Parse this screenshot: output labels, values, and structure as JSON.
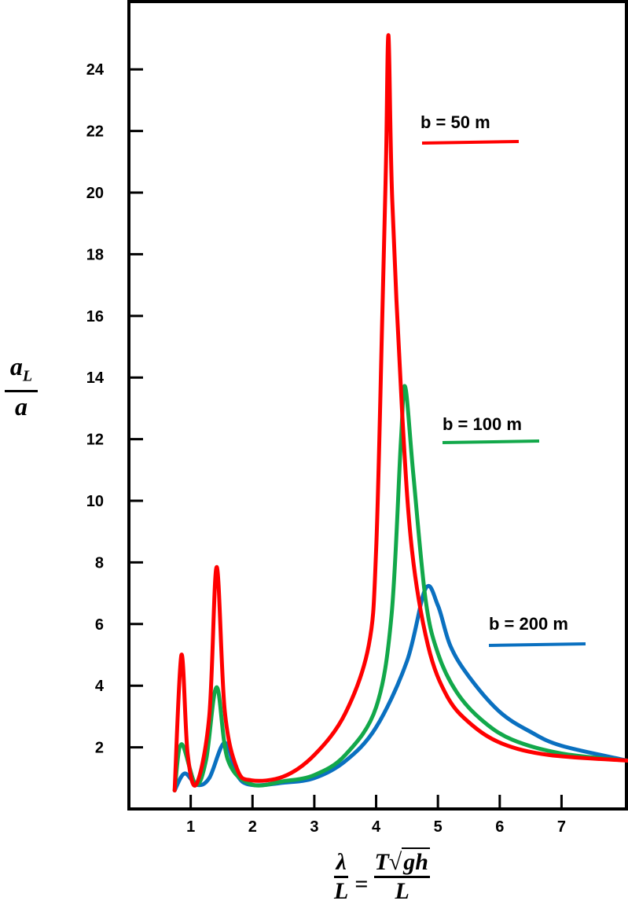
{
  "chart_data": {
    "type": "line",
    "title": "",
    "ylabel": {
      "numerator": "a",
      "subscript": "L",
      "denominator": "a"
    },
    "xlabel": {
      "lhs_num": "λ",
      "lhs_den": "L",
      "equals": "=",
      "rhs_num_prefix": "T",
      "rhs_sqrt": "√",
      "rhs_sqrt_content": "gh",
      "rhs_den": "L"
    },
    "xlim": [
      0,
      8.05
    ],
    "ylim": [
      0,
      26.2
    ],
    "xticks": [
      1,
      2,
      3,
      4,
      5,
      6,
      7
    ],
    "yticks": [
      2,
      4,
      6,
      8,
      10,
      12,
      14,
      16,
      18,
      20,
      22,
      24
    ],
    "grid": false,
    "series": [
      {
        "name": "b = 200 m",
        "color": "#0a70c0",
        "x": [
          0.74,
          0.9,
          1.1,
          1.3,
          1.55,
          1.75,
          1.98,
          2.5,
          3.0,
          3.5,
          4.0,
          4.5,
          4.8,
          5.0,
          5.2,
          5.5,
          6.0,
          6.5,
          7.0,
          8.06
        ],
        "y": [
          0.6,
          1.15,
          0.78,
          1.0,
          2.15,
          1.1,
          0.78,
          0.85,
          1.0,
          1.55,
          2.65,
          4.8,
          7.15,
          6.6,
          5.3,
          4.3,
          3.15,
          2.5,
          2.05,
          1.57
        ]
      },
      {
        "name": "b = 100 m",
        "color": "#12a84a",
        "x": [
          0.74,
          0.85,
          1.08,
          1.25,
          1.42,
          1.6,
          1.98,
          2.5,
          3.0,
          3.5,
          4.0,
          4.25,
          4.4,
          4.47,
          4.6,
          4.8,
          5.0,
          5.3,
          5.7,
          6.2,
          7.0,
          8.06
        ],
        "y": [
          0.6,
          2.1,
          0.8,
          1.6,
          3.95,
          1.6,
          0.8,
          0.9,
          1.1,
          1.75,
          3.3,
          6.3,
          11.9,
          13.7,
          10.9,
          6.8,
          5.05,
          3.8,
          2.9,
          2.25,
          1.8,
          1.57
        ]
      },
      {
        "name": "b = 50 m",
        "color": "#ff0000",
        "x": [
          0.74,
          0.85,
          0.95,
          1.09,
          1.3,
          1.42,
          1.55,
          1.75,
          1.98,
          2.5,
          3.0,
          3.5,
          3.88,
          4.0,
          4.1,
          4.16,
          4.2,
          4.26,
          4.42,
          4.58,
          4.84,
          5.15,
          5.53,
          6.04,
          6.8,
          8.06
        ],
        "y": [
          0.6,
          5.0,
          1.8,
          0.8,
          3.0,
          7.85,
          3.2,
          1.3,
          0.93,
          1.05,
          1.75,
          3.1,
          5.3,
          8.4,
          16.0,
          21.0,
          25.1,
          19.8,
          12.9,
          8.4,
          5.3,
          3.65,
          2.76,
          2.12,
          1.75,
          1.57
        ]
      }
    ],
    "legend": [
      {
        "label": "b = 50 m",
        "color": "#ff0000"
      },
      {
        "label": "b = 100 m",
        "color": "#12a84a"
      },
      {
        "label": "b = 200 m",
        "color": "#0a70c0"
      }
    ],
    "legend_placement": "inline-right"
  }
}
